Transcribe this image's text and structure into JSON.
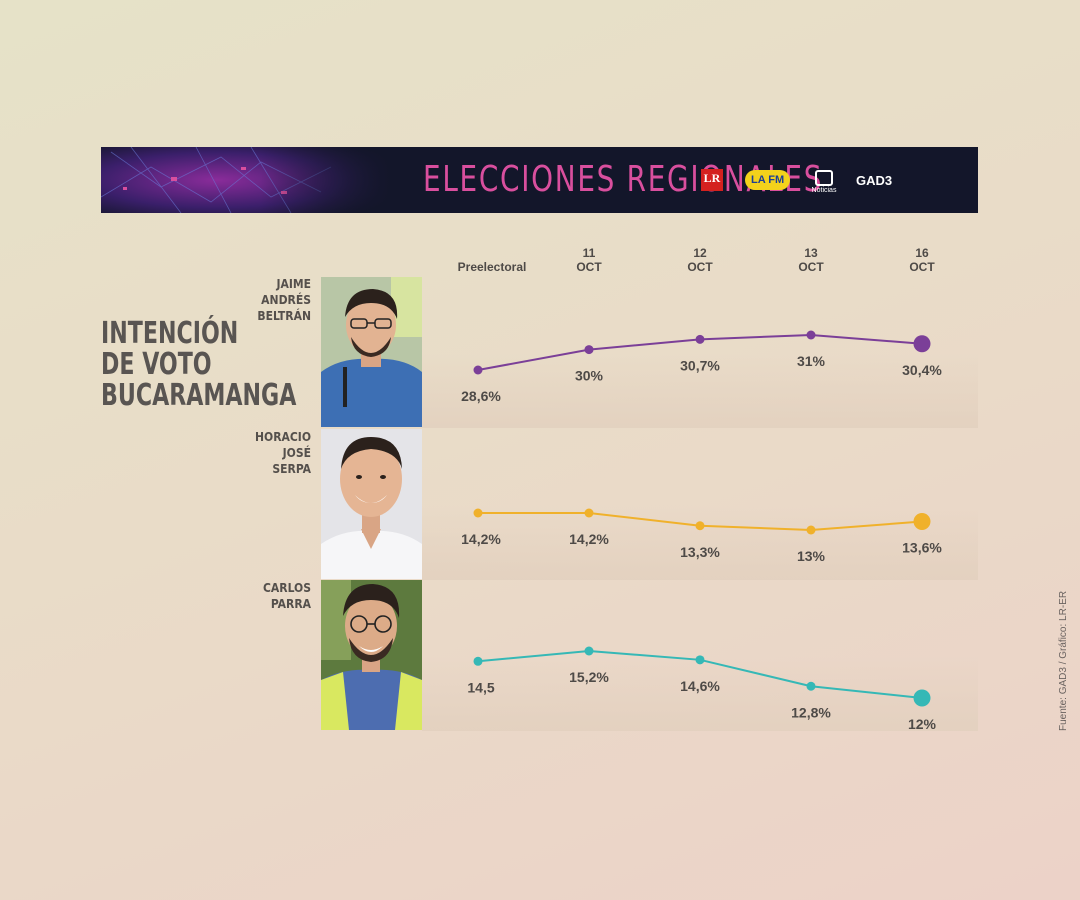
{
  "banner": {
    "title": "ELECCIONES REGIONALES",
    "logos": [
      {
        "name": "LR",
        "text": "LR"
      },
      {
        "name": "LA FM",
        "text": "LA FM"
      },
      {
        "name": "Noticias",
        "text": "Noticias"
      },
      {
        "name": "GAD3",
        "text": "GAD3"
      }
    ],
    "background_color": "#13162a",
    "title_color": "#d94f9e"
  },
  "side_title": [
    "INTENCIÓN",
    "DE VOTO",
    "BUCARAMANGA"
  ],
  "credit": "Fuente: GAD3 / Gráfico: LR-ER",
  "columns": [
    {
      "line1": "Preelectoral",
      "line2": ""
    },
    {
      "line1": "11",
      "line2": "OCT"
    },
    {
      "line1": "12",
      "line2": "OCT"
    },
    {
      "line1": "13",
      "line2": "OCT"
    },
    {
      "line1": "16",
      "line2": "OCT"
    }
  ],
  "candidates": [
    {
      "name_lines": [
        "JAIME",
        "ANDRÉS",
        "BELTRÁN"
      ],
      "photo": "portrait-jaime-andres-beltran"
    },
    {
      "name_lines": [
        "HORACIO",
        "JOSÉ",
        "SERPA"
      ],
      "photo": "portrait-horacio-jose-serpa"
    },
    {
      "name_lines": [
        "CARLOS",
        "PARRA"
      ],
      "photo": "portrait-carlos-parra"
    }
  ],
  "chart_data": {
    "type": "line",
    "title": "INTENCIÓN DE VOTO BUCARAMANGA",
    "categories": [
      "Preelectoral",
      "11 OCT",
      "12 OCT",
      "13 OCT",
      "16 OCT"
    ],
    "series": [
      {
        "name": "JAIME ANDRÉS BELTRÁN",
        "values": [
          28.6,
          30,
          30.7,
          31,
          30.4
        ],
        "labels": [
          "28,6%",
          "30%",
          "30,7%",
          "31%",
          "30,4%"
        ],
        "color": "#7b3f98"
      },
      {
        "name": "HORACIO JOSÉ SERPA",
        "values": [
          14.2,
          14.2,
          13.3,
          13,
          13.6
        ],
        "labels": [
          "14,2%",
          "14,2%",
          "13,3%",
          "13%",
          "13,6%"
        ],
        "color": "#f0b12b"
      },
      {
        "name": "CARLOS PARRA",
        "values": [
          14.5,
          15.2,
          14.6,
          12.8,
          12
        ],
        "labels": [
          "14,5",
          "15,2%",
          "14,6%",
          "12,8%",
          "12%"
        ],
        "color": "#35b8b6"
      }
    ],
    "xlabel": "",
    "ylabel": "",
    "grid": false,
    "legend": "none"
  }
}
